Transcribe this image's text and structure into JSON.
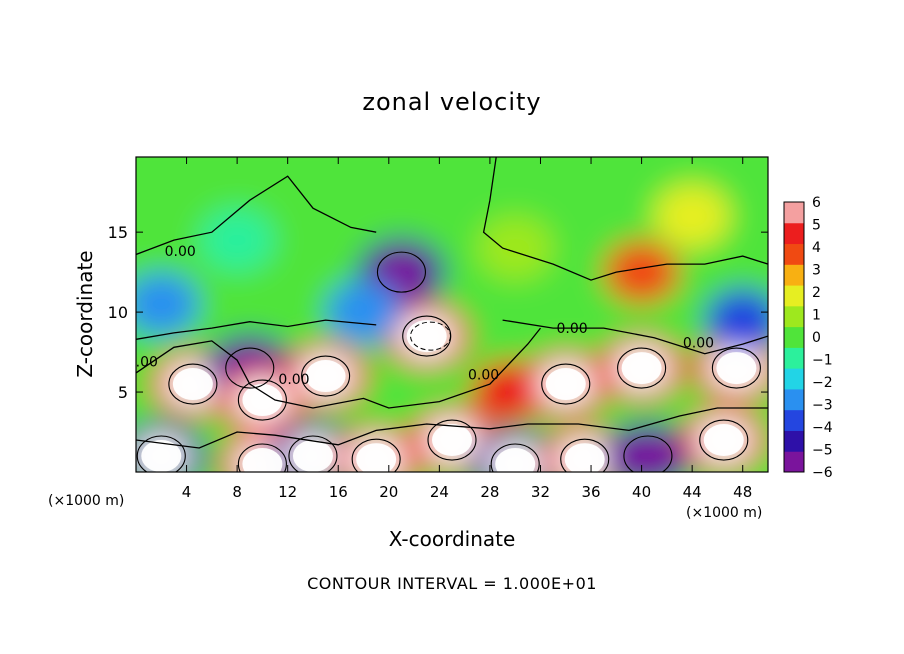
{
  "chart_data": {
    "type": "heatmap",
    "title": "zonal velocity",
    "xlabel": "X-coordinate",
    "ylabel": "Z-coordinate",
    "x_unit": "(×1000 m)",
    "x_ticks": [
      4,
      8,
      12,
      16,
      20,
      24,
      28,
      32,
      36,
      40,
      44,
      48
    ],
    "y_ticks": [
      5,
      10,
      15
    ],
    "xlim": [
      0,
      50
    ],
    "ylim": [
      0,
      19.7
    ],
    "colorbar": {
      "min": -6,
      "max": 6,
      "ticks": [
        6,
        5,
        4,
        3,
        2,
        1,
        0,
        -1,
        -2,
        -3,
        -4,
        -5,
        -6
      ],
      "colors": [
        "#7a149c",
        "#2e10a8",
        "#2446e0",
        "#2a90f0",
        "#22d4e6",
        "#2cf09c",
        "#50e43a",
        "#9ee81e",
        "#e6ee22",
        "#f8b012",
        "#f04a12",
        "#ec1e1e",
        "#f4a0a0"
      ]
    },
    "contour_label": "0.00",
    "contour_interval_text": "CONTOUR INTERVAL = 1.000E+01",
    "blobs": [
      {
        "x": 4.5,
        "z": 5.5,
        "u": 7
      },
      {
        "x": 2.0,
        "z": 1.0,
        "u": -7
      },
      {
        "x": 9.0,
        "z": 6.5,
        "u": -5.5
      },
      {
        "x": 10.0,
        "z": 4.5,
        "u": 7
      },
      {
        "x": 10.0,
        "z": 0.5,
        "u": 7
      },
      {
        "x": 15.0,
        "z": 6.0,
        "u": 7
      },
      {
        "x": 14.0,
        "z": 1.0,
        "u": -7
      },
      {
        "x": 19.0,
        "z": 0.8,
        "u": 7
      },
      {
        "x": 21.0,
        "z": 12.5,
        "u": -5.5
      },
      {
        "x": 23.0,
        "z": 8.5,
        "u": 7
      },
      {
        "x": 25.0,
        "z": 2.0,
        "u": 7
      },
      {
        "x": 29.5,
        "z": 5.0,
        "u": 4.5
      },
      {
        "x": 30.0,
        "z": 0.5,
        "u": -7
      },
      {
        "x": 34.0,
        "z": 5.5,
        "u": 7
      },
      {
        "x": 35.5,
        "z": 0.8,
        "u": 7
      },
      {
        "x": 40.0,
        "z": 6.5,
        "u": 6.5
      },
      {
        "x": 40.5,
        "z": 1.0,
        "u": -6
      },
      {
        "x": 47.5,
        "z": 6.5,
        "u": 7
      },
      {
        "x": 46.5,
        "z": 2.0,
        "u": 7
      },
      {
        "x": 40.0,
        "z": 12.5,
        "u": 3.5
      },
      {
        "x": 44.0,
        "z": 16.0,
        "u": 1.8
      },
      {
        "x": 30.0,
        "z": 14.0,
        "u": 0.8
      },
      {
        "x": 8.0,
        "z": 14.5,
        "u": -0.6
      },
      {
        "x": 2.0,
        "z": 10.5,
        "u": -3.0
      },
      {
        "x": 48.0,
        "z": 9.5,
        "u": -3.5
      },
      {
        "x": 18.0,
        "z": 10.0,
        "u": -3.0
      }
    ]
  }
}
